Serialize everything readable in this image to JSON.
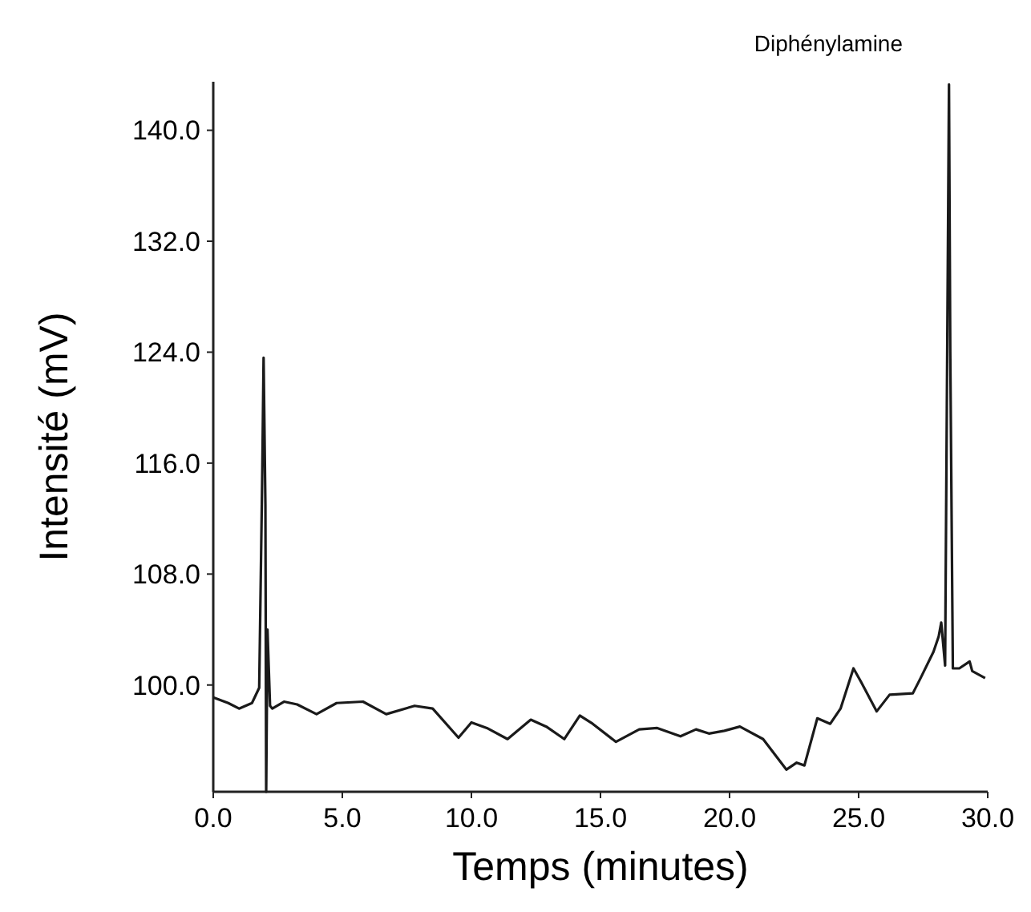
{
  "chart_data": {
    "type": "line",
    "xlabel": "Temps (minutes)",
    "ylabel": "Intensité (mV)",
    "annotations": [
      "Diphénylamine"
    ],
    "xlim": [
      0,
      30
    ],
    "ylim": [
      92.3,
      143.5
    ],
    "xticks": [
      {
        "value": 0,
        "label": "0.0"
      },
      {
        "value": 5,
        "label": "5.0"
      },
      {
        "value": 10,
        "label": "10.0"
      },
      {
        "value": 15,
        "label": "15.0"
      },
      {
        "value": 20,
        "label": "20.0"
      },
      {
        "value": 25,
        "label": "25.0"
      },
      {
        "value": 30,
        "label": "30.0"
      }
    ],
    "yticks": [
      {
        "value": 100,
        "label": "100.0"
      },
      {
        "value": 108,
        "label": "108.0"
      },
      {
        "value": 116,
        "label": "116.0"
      },
      {
        "value": 124,
        "label": "124.0"
      },
      {
        "value": 132,
        "label": "132.0"
      },
      {
        "value": 140,
        "label": "140.0"
      }
    ],
    "grid": false,
    "marker": "none",
    "line_style": "solid",
    "series": [
      {
        "color": "#1a1a1a",
        "x": [
          0,
          0.58,
          1.0,
          1.5,
          1.78,
          1.9,
          1.95,
          2.0,
          2.02,
          2.05,
          2.1,
          2.2,
          2.29,
          2.74,
          3.25,
          4.0,
          4.78,
          5.8,
          6.7,
          7.8,
          8.5,
          9.5,
          10.0,
          10.6,
          11.4,
          12.3,
          12.9,
          13.6,
          14.2,
          14.7,
          15.6,
          16.5,
          17.2,
          18.1,
          18.7,
          19.2,
          19.8,
          20.4,
          21.3,
          22.2,
          22.6,
          22.9,
          23.4,
          23.9,
          24.3,
          24.8,
          25.1,
          25.7,
          26.2,
          27.1,
          27.4,
          27.9,
          28.1,
          28.2,
          28.35,
          28.5,
          28.55,
          28.65,
          28.9,
          29.3,
          29.4,
          29.9
        ],
        "values": [
          99.1,
          98.7,
          98.3,
          98.7,
          99.8,
          115.5,
          123.6,
          116,
          113,
          92.3,
          104,
          98.5,
          98.3,
          98.8,
          98.6,
          97.9,
          98.7,
          98.8,
          97.9,
          98.5,
          98.3,
          96.2,
          97.3,
          96.9,
          96.1,
          97.5,
          97.0,
          96.1,
          97.8,
          97.2,
          95.9,
          96.8,
          96.9,
          96.3,
          96.8,
          96.5,
          96.7,
          97.0,
          96.1,
          93.9,
          94.4,
          94.2,
          97.6,
          97.2,
          98.3,
          101.2,
          100.2,
          98.1,
          99.3,
          99.4,
          100.5,
          102.4,
          103.5,
          104.5,
          101.4,
          143.3,
          124,
          101.2,
          101.2,
          101.7,
          101.0,
          100.5
        ]
      }
    ]
  }
}
